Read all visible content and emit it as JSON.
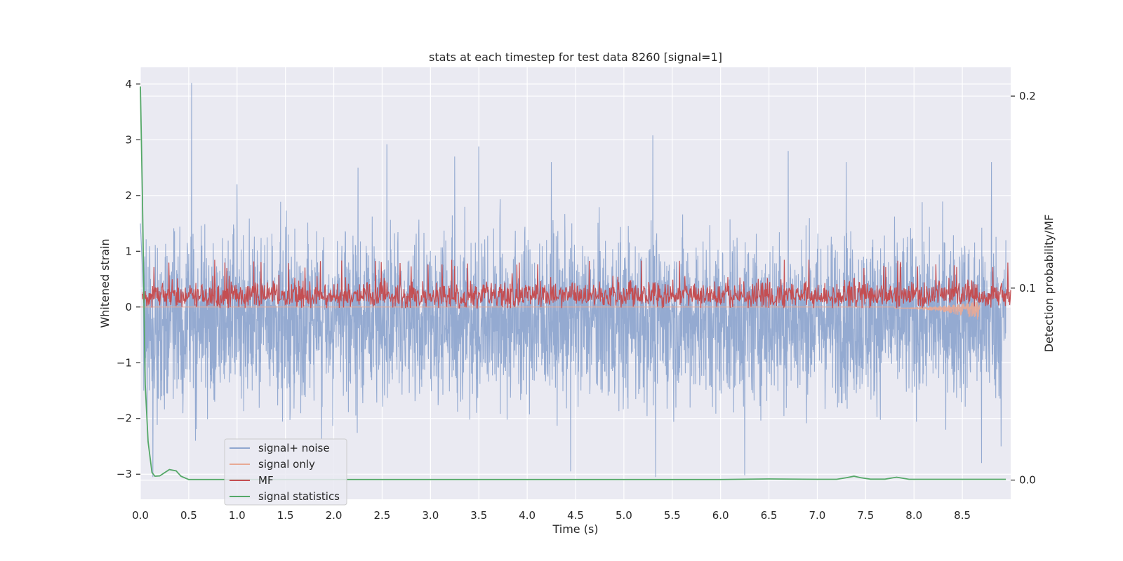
{
  "chart_data": {
    "type": "line",
    "title": "stats at each timestep for test data 8260 [signal=1]",
    "xlabel": "Time (s)",
    "ylabel": "Whitened strain",
    "y2label": "Detection probability/MF",
    "xlim": [
      0.0,
      9.0
    ],
    "ylim": [
      -3.45,
      4.3
    ],
    "y2lim": [
      -0.01,
      0.215
    ],
    "xticks": [
      0.0,
      0.5,
      1.0,
      1.5,
      2.0,
      2.5,
      3.0,
      3.5,
      4.0,
      4.5,
      5.0,
      5.5,
      6.0,
      6.5,
      7.0,
      7.5,
      8.0,
      8.5
    ],
    "xtick_labels": [
      "0.0",
      "0.5",
      "1.0",
      "1.5",
      "2.0",
      "2.5",
      "3.0",
      "3.5",
      "4.0",
      "4.5",
      "5.0",
      "5.5",
      "6.0",
      "6.5",
      "7.0",
      "7.5",
      "8.0",
      "8.5"
    ],
    "yticks": [
      -3,
      -2,
      -1,
      0,
      1,
      2,
      3,
      4
    ],
    "ytick_labels": [
      "−3",
      "−2",
      "−1",
      "0",
      "1",
      "2",
      "3",
      "4"
    ],
    "y2ticks": [
      0.0,
      0.1,
      0.2
    ],
    "y2tick_labels": [
      "0.0",
      "0.1",
      "0.2"
    ],
    "grid": true,
    "legend_position": "lower-left",
    "series": [
      {
        "name": "signal+ noise",
        "axis": "left",
        "color": "#8fa6cf",
        "style": "noise",
        "baseline": -0.2,
        "amplitude": 0.75,
        "peaks": [
          [
            0.53,
            4.02
          ],
          [
            0.57,
            -2.4
          ],
          [
            2.55,
            2.92
          ],
          [
            3.5,
            2.88
          ],
          [
            4.45,
            -2.95
          ],
          [
            5.3,
            3.08
          ],
          [
            5.33,
            -3.05
          ],
          [
            6.25,
            -3.02
          ],
          [
            6.7,
            2.8
          ],
          [
            8.7,
            -2.8
          ],
          [
            8.9,
            -2.5
          ],
          [
            1.0,
            2.2
          ],
          [
            2.25,
            2.5
          ],
          [
            3.25,
            2.7
          ],
          [
            4.25,
            2.6
          ],
          [
            7.3,
            2.6
          ],
          [
            8.8,
            2.6
          ],
          [
            0.13,
            -3.05
          ],
          [
            0.07,
            -2.0
          ]
        ]
      },
      {
        "name": "signal only",
        "axis": "left",
        "color": "#e8a995",
        "style": "chirp",
        "chirp_start": 7.8,
        "chirp_end": 8.68,
        "chirp_max_amplitude": 0.22
      },
      {
        "name": "MF",
        "axis": "left",
        "color": "#c44e52",
        "style": "mf",
        "baseline": 0.18,
        "amplitude": 0.16,
        "max": 0.85,
        "min": -0.02
      },
      {
        "name": "signal statistics",
        "axis": "right",
        "color": "#55a868",
        "style": "points",
        "x": [
          0.0,
          0.02,
          0.05,
          0.08,
          0.12,
          0.15,
          0.2,
          0.3,
          0.37,
          0.42,
          0.5,
          1.0,
          2.0,
          3.0,
          4.0,
          5.0,
          6.0,
          6.5,
          7.0,
          7.2,
          7.3,
          7.38,
          7.45,
          7.55,
          7.7,
          7.82,
          7.95,
          8.1,
          8.5,
          8.95
        ],
        "y": [
          0.205,
          0.15,
          0.05,
          0.02,
          0.004,
          0.002,
          0.0022,
          0.0055,
          0.0048,
          0.002,
          0.0003,
          0.0003,
          0.0003,
          0.0003,
          0.0003,
          0.0003,
          0.0003,
          0.0006,
          0.0004,
          0.0004,
          0.0012,
          0.002,
          0.0012,
          0.0005,
          0.0005,
          0.0015,
          0.0004,
          0.0004,
          0.0004,
          0.0004
        ]
      }
    ]
  }
}
